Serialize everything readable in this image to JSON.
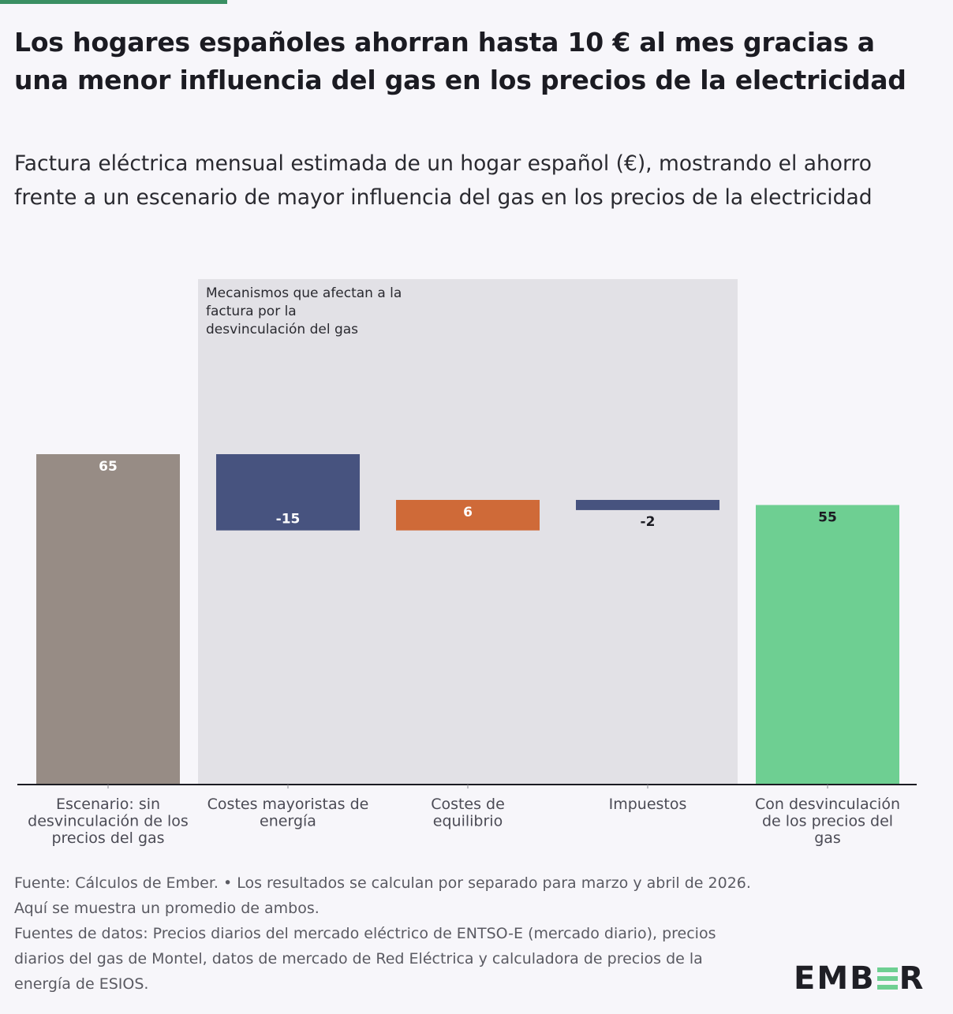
{
  "colors": {
    "accent_bar": "#3a8f63",
    "start": "#978c85",
    "decrease": "#47537f",
    "increase": "#cf6a38",
    "end": "#6ecf92",
    "band": "#e2e1e6",
    "axis": "#1b1b22"
  },
  "header": {
    "title": "Los hogares españoles ahorran hasta 10 € al mes gracias a una menor influencia del gas en los precios de la electricidad",
    "subtitle": "Factura eléctrica mensual estimada de un hogar español (€), mostrando el ahorro frente a un escenario de mayor influencia del gas en los precios de la electricidad"
  },
  "chart_data": {
    "type": "bar",
    "subtype": "waterfall",
    "ylim": [
      0,
      76
    ],
    "grid": false,
    "categories": [
      "Escenario: sin desvinculación de los precios del gas",
      "Costes mayoristas de energía",
      "Costes de equilibrio",
      "Impuestos",
      "Con desvinculación de los precios del gas"
    ],
    "values": [
      65,
      -15,
      6,
      -2,
      55
    ],
    "value_labels": [
      "65",
      "-15",
      "6",
      "-2",
      "55"
    ],
    "bar_kinds": [
      "start",
      "decrease",
      "increase",
      "decrease",
      "end"
    ],
    "annotation": "Mecanismos que afectan a la factura por la desvinculación del gas",
    "annotation_span": [
      "Costes mayoristas de energía",
      "Impuestos"
    ]
  },
  "footer": {
    "source": "Fuente: Cálculos de Ember. • Los resultados se calculan por separado para marzo y abril de 2026. Aquí se muestra un promedio de ambos.",
    "data_sources": "Fuentes de datos: Precios diarios del mercado eléctrico de ENTSO-E (mercado diario), precios diarios del gas de Montel, datos de mercado de Red Eléctrica y calculadora de precios de la energía de ESIOS."
  },
  "logo": {
    "text": "EMBER"
  }
}
